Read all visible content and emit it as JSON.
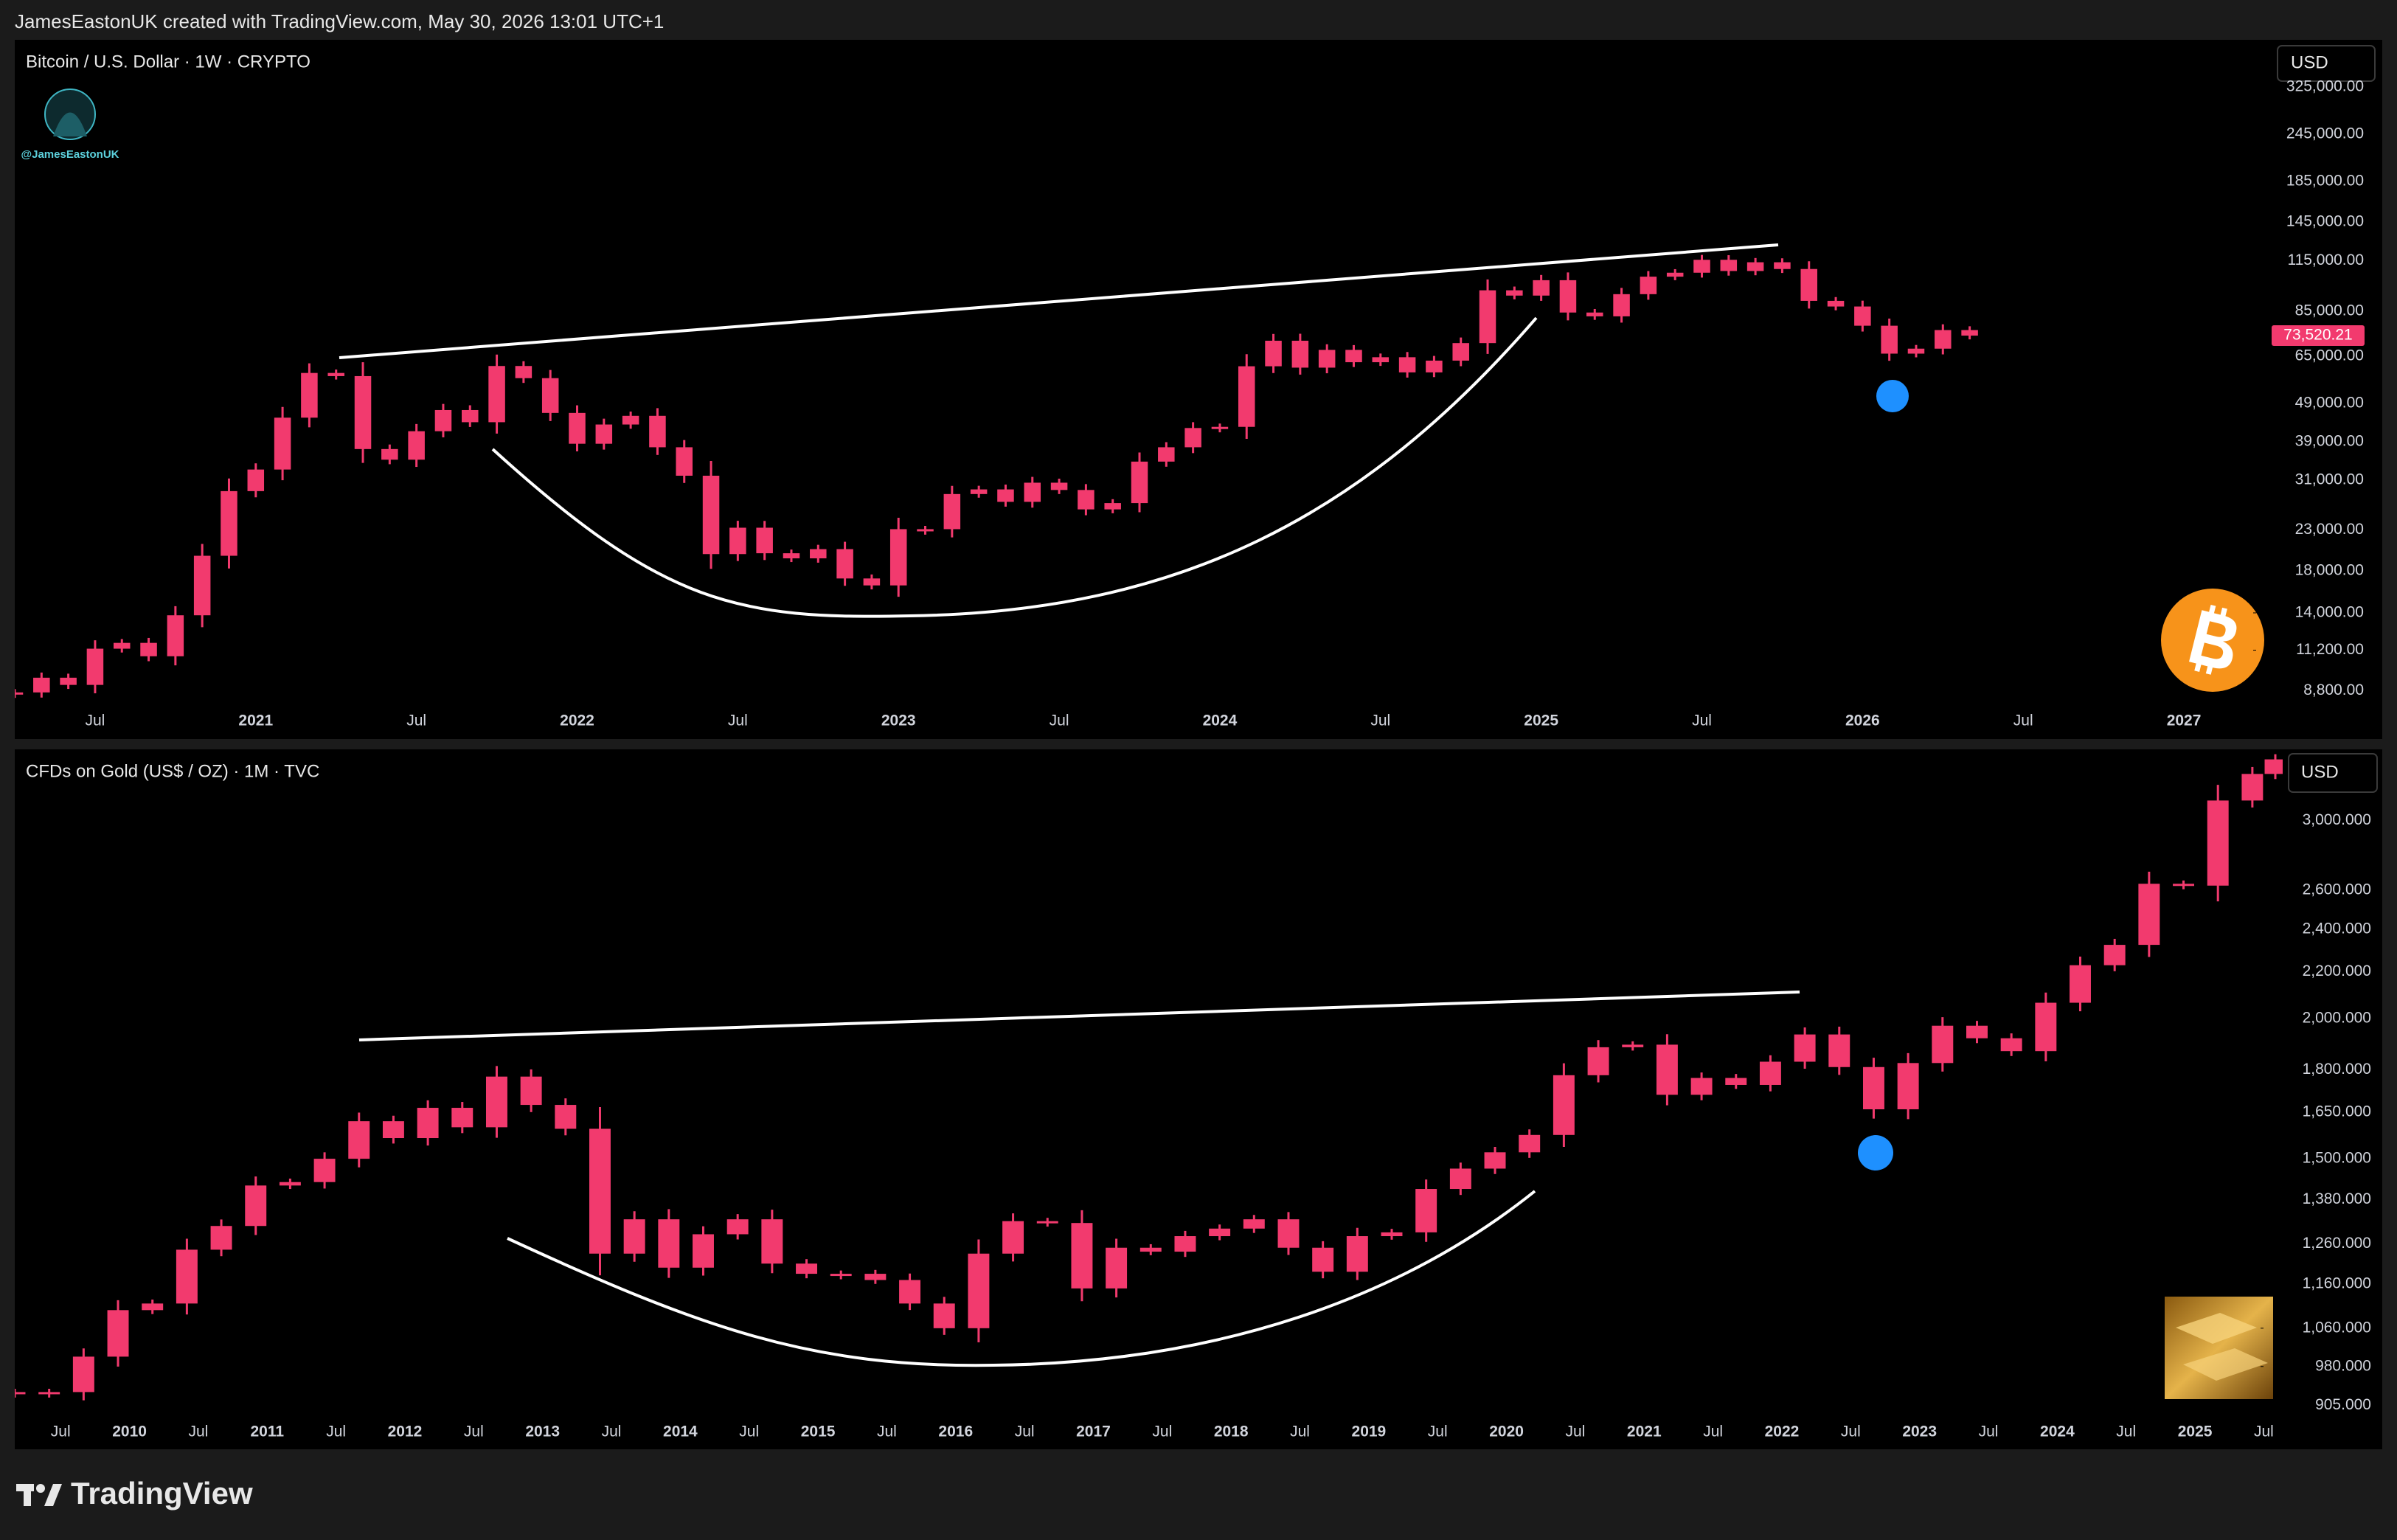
{
  "header": "JamesEastonUK created with TradingView.com, May 30, 2026 13:01 UTC+1",
  "footer": "TradingView",
  "chart_data": [
    {
      "type": "candlestick",
      "title": "Bitcoin / U.S. Dollar · 1W · CRYPTO",
      "currency_button": "USD",
      "watermark": "@JamesEastonUK",
      "log_scale": true,
      "grid": false,
      "x": [
        "2020-04",
        "2020-05",
        "2020-06",
        "2020-07",
        "2020-08",
        "2020-09",
        "2020-10",
        "2020-11",
        "2020-12",
        "2021-01",
        "2021-02",
        "2021-03",
        "2021-04",
        "2021-05",
        "2021-06",
        "2021-07",
        "2021-08",
        "2021-09",
        "2021-10",
        "2021-11",
        "2021-12",
        "2022-01",
        "2022-02",
        "2022-03",
        "2022-04",
        "2022-05",
        "2022-06",
        "2022-07",
        "2022-08",
        "2022-09",
        "2022-10",
        "2022-11",
        "2022-12",
        "2023-01",
        "2023-02",
        "2023-03",
        "2023-04",
        "2023-05",
        "2023-06",
        "2023-07",
        "2023-08",
        "2023-09",
        "2023-10",
        "2023-11",
        "2023-12",
        "2024-01",
        "2024-02",
        "2024-03",
        "2024-04",
        "2024-05",
        "2024-06",
        "2024-07",
        "2024-08",
        "2024-09",
        "2024-10",
        "2024-11",
        "2024-12",
        "2025-01",
        "2025-02",
        "2025-03",
        "2025-04",
        "2025-05",
        "2025-06",
        "2025-07",
        "2025-08",
        "2025-09",
        "2025-10",
        "2025-11",
        "2025-12",
        "2026-01",
        "2026-02",
        "2026-03",
        "2026-04",
        "2026-05"
      ],
      "series": [
        {
          "name": "BTCUSD",
          "color": "#f23a6e",
          "values": [
            8700,
            9500,
            9100,
            11300,
            11700,
            10800,
            13800,
            19700,
            29000,
            33000,
            45000,
            58800,
            57700,
            37300,
            35000,
            41500,
            47100,
            43800,
            61300,
            57000,
            46300,
            38500,
            43200,
            45500,
            37700,
            31800,
            19900,
            23300,
            20000,
            19400,
            20500,
            17200,
            16500,
            23100,
            23100,
            28500,
            29300,
            27200,
            30500,
            29200,
            26000,
            27000,
            34600,
            37700,
            42300,
            42600,
            61200,
            71300,
            60700,
            67500,
            62700,
            64600,
            59000,
            63300,
            70300,
            96400,
            93400,
            102400,
            84400,
            82500,
            94200,
            104600,
            107100,
            115700,
            108200,
            114000,
            109500,
            90500,
            87500,
            78000,
            66000,
            68000,
            76000,
            73520.21
          ]
        }
      ],
      "last_value_label": "73,520.21",
      "xlim": [
        "2020-04",
        "2027-04"
      ],
      "xticks": [
        {
          "value": "2020-07",
          "label": "Jul"
        },
        {
          "value": "2021-01",
          "label": "2021"
        },
        {
          "value": "2021-07",
          "label": "Jul"
        },
        {
          "value": "2022-01",
          "label": "2022"
        },
        {
          "value": "2022-07",
          "label": "Jul"
        },
        {
          "value": "2023-01",
          "label": "2023"
        },
        {
          "value": "2023-07",
          "label": "Jul"
        },
        {
          "value": "2024-01",
          "label": "2024"
        },
        {
          "value": "2024-07",
          "label": "Jul"
        },
        {
          "value": "2025-01",
          "label": "2025"
        },
        {
          "value": "2025-07",
          "label": "Jul"
        },
        {
          "value": "2026-01",
          "label": "2026"
        },
        {
          "value": "2026-07",
          "label": "Jul"
        },
        {
          "value": "2027-01",
          "label": "2027"
        }
      ],
      "ylim": [
        8100,
        420000
      ],
      "yticks": [
        {
          "value": 325000,
          "label": "325,000.00"
        },
        {
          "value": 245000,
          "label": "245,000.00"
        },
        {
          "value": 185000,
          "label": "185,000.00"
        },
        {
          "value": 145000,
          "label": "145,000.00"
        },
        {
          "value": 115000,
          "label": "115,000.00"
        },
        {
          "value": 85000,
          "label": "85,000.00"
        },
        {
          "value": 65000,
          "label": "65,000.00"
        },
        {
          "value": 49000,
          "label": "49,000.00"
        },
        {
          "value": 39000,
          "label": "39,000.00"
        },
        {
          "value": 31000,
          "label": "31,000.00"
        },
        {
          "value": 23000,
          "label": "23,000.00"
        },
        {
          "value": 18000,
          "label": "18,000.00"
        },
        {
          "value": 14000,
          "label": "14,000.00"
        },
        {
          "value": 11200,
          "label": "11,200.00"
        },
        {
          "value": 8800,
          "label": "8,800.00"
        }
      ]
    },
    {
      "type": "candlestick",
      "title": "CFDs on Gold (US$ / OZ) · 1M · TVC",
      "currency_button": "USD",
      "log_scale": true,
      "grid": false,
      "x": [
        "2009-03",
        "2009-06",
        "2009-09",
        "2009-12",
        "2010-03",
        "2010-06",
        "2010-09",
        "2010-12",
        "2011-03",
        "2011-06",
        "2011-09",
        "2011-12",
        "2012-03",
        "2012-06",
        "2012-09",
        "2012-12",
        "2013-03",
        "2013-06",
        "2013-09",
        "2013-12",
        "2014-03",
        "2014-06",
        "2014-09",
        "2014-12",
        "2015-03",
        "2015-06",
        "2015-09",
        "2015-12",
        "2016-03",
        "2016-06",
        "2016-09",
        "2016-12",
        "2017-03",
        "2017-06",
        "2017-09",
        "2017-12",
        "2018-03",
        "2018-06",
        "2018-09",
        "2018-12",
        "2019-03",
        "2019-06",
        "2019-09",
        "2019-12",
        "2020-03",
        "2020-06",
        "2020-09",
        "2020-12",
        "2021-03",
        "2021-06",
        "2021-09",
        "2021-12",
        "2022-03",
        "2022-06",
        "2022-09",
        "2022-12",
        "2023-03",
        "2023-06",
        "2023-09",
        "2023-12",
        "2024-03",
        "2024-06",
        "2024-09",
        "2024-12",
        "2025-03",
        "2025-06",
        "2025-08"
      ],
      "series": [
        {
          "name": "XAUUSD",
          "color": "#f23a6e",
          "values": [
            930,
            930,
            1000,
            1100,
            1115,
            1245,
            1307,
            1420,
            1430,
            1500,
            1620,
            1565,
            1665,
            1600,
            1775,
            1675,
            1595,
            1235,
            1325,
            1200,
            1285,
            1325,
            1210,
            1185,
            1185,
            1170,
            1115,
            1060,
            1235,
            1320,
            1315,
            1150,
            1250,
            1240,
            1280,
            1300,
            1325,
            1250,
            1190,
            1280,
            1290,
            1410,
            1470,
            1520,
            1575,
            1780,
            1885,
            1895,
            1710,
            1770,
            1745,
            1830,
            1935,
            1810,
            1660,
            1825,
            1970,
            1920,
            1870,
            2065,
            2230,
            2325,
            2635,
            2625,
            3125,
            3300,
            3400
          ]
        }
      ],
      "xlim": [
        "2009-03",
        "2025-08"
      ],
      "xticks": [
        {
          "value": "2009-07",
          "label": "Jul"
        },
        {
          "value": "2010-01",
          "label": "2010"
        },
        {
          "value": "2010-07",
          "label": "Jul"
        },
        {
          "value": "2011-01",
          "label": "2011"
        },
        {
          "value": "2011-07",
          "label": "Jul"
        },
        {
          "value": "2012-01",
          "label": "2012"
        },
        {
          "value": "2012-07",
          "label": "Jul"
        },
        {
          "value": "2013-01",
          "label": "2013"
        },
        {
          "value": "2013-07",
          "label": "Jul"
        },
        {
          "value": "2014-01",
          "label": "2014"
        },
        {
          "value": "2014-07",
          "label": "Jul"
        },
        {
          "value": "2015-01",
          "label": "2015"
        },
        {
          "value": "2015-07",
          "label": "Jul"
        },
        {
          "value": "2016-01",
          "label": "2016"
        },
        {
          "value": "2016-07",
          "label": "Jul"
        },
        {
          "value": "2017-01",
          "label": "2017"
        },
        {
          "value": "2017-07",
          "label": "Jul"
        },
        {
          "value": "2018-01",
          "label": "2018"
        },
        {
          "value": "2018-07",
          "label": "Jul"
        },
        {
          "value": "2019-01",
          "label": "2019"
        },
        {
          "value": "2019-07",
          "label": "Jul"
        },
        {
          "value": "2020-01",
          "label": "2020"
        },
        {
          "value": "2020-07",
          "label": "Jul"
        },
        {
          "value": "2021-01",
          "label": "2021"
        },
        {
          "value": "2021-07",
          "label": "Jul"
        },
        {
          "value": "2022-01",
          "label": "2022"
        },
        {
          "value": "2022-07",
          "label": "Jul"
        },
        {
          "value": "2023-01",
          "label": "2023"
        },
        {
          "value": "2023-07",
          "label": "Jul"
        },
        {
          "value": "2024-01",
          "label": "2024"
        },
        {
          "value": "2024-07",
          "label": "Jul"
        },
        {
          "value": "2025-01",
          "label": "2025"
        },
        {
          "value": "2025-07",
          "label": "Jul"
        }
      ],
      "ylim": [
        888,
        3460
      ],
      "yticks": [
        {
          "value": 3000,
          "label": "3,000.000"
        },
        {
          "value": 2600,
          "label": "2,600.000"
        },
        {
          "value": 2400,
          "label": "2,400.000"
        },
        {
          "value": 2200,
          "label": "2,200.000"
        },
        {
          "value": 2000,
          "label": "2,000.000"
        },
        {
          "value": 1800,
          "label": "1,800.000"
        },
        {
          "value": 1650,
          "label": "1,650.000"
        },
        {
          "value": 1500,
          "label": "1,500.000"
        },
        {
          "value": 1380,
          "label": "1,380.000"
        },
        {
          "value": 1260,
          "label": "1,260.000"
        },
        {
          "value": 1160,
          "label": "1,160.000"
        },
        {
          "value": 1060,
          "label": "1,060.000"
        },
        {
          "value": 980,
          "label": "980.000"
        },
        {
          "value": 905,
          "label": "905.000"
        }
      ]
    }
  ]
}
